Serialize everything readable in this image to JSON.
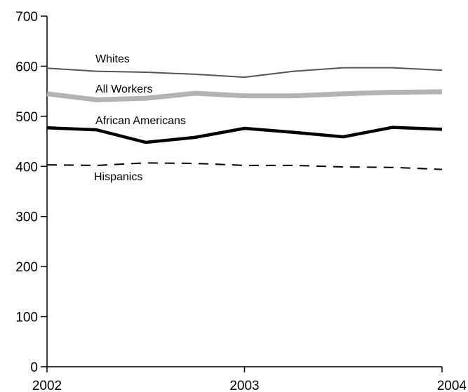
{
  "chart_data": {
    "type": "line",
    "title": "",
    "xlabel": "",
    "ylabel": "",
    "x": [
      2002,
      2002.25,
      2002.5,
      2002.75,
      2003,
      2003.25,
      2003.5,
      2003.75,
      2004
    ],
    "xlim": [
      2002,
      2004
    ],
    "ylim": [
      0,
      700
    ],
    "x_ticks": [
      2002,
      2003,
      2004
    ],
    "y_ticks": [
      0,
      100,
      200,
      300,
      400,
      500,
      600,
      700
    ],
    "x_tick_labels": [
      "2002",
      "2003",
      "2004"
    ],
    "y_tick_labels": [
      "0",
      "100",
      "200",
      "300",
      "400",
      "500",
      "600",
      "700"
    ],
    "grid": false,
    "legend": "none",
    "series": [
      {
        "name": "Whites",
        "values": [
          596,
          590,
          588,
          584,
          578,
          590,
          597,
          597,
          592
        ],
        "color": "#555555",
        "style": "thin"
      },
      {
        "name": "All Workers",
        "values": [
          545,
          533,
          536,
          546,
          541,
          541,
          545,
          548,
          549
        ],
        "color": "#b3b3b3",
        "style": "thick"
      },
      {
        "name": "African Americans",
        "values": [
          477,
          473,
          448,
          458,
          476,
          468,
          459,
          478,
          474
        ],
        "color": "#000000",
        "style": "bold"
      },
      {
        "name": "Hispanics",
        "values": [
          403,
          402,
          407,
          406,
          402,
          402,
          399,
          398,
          394
        ],
        "color": "#000000",
        "style": "dashed"
      }
    ]
  }
}
